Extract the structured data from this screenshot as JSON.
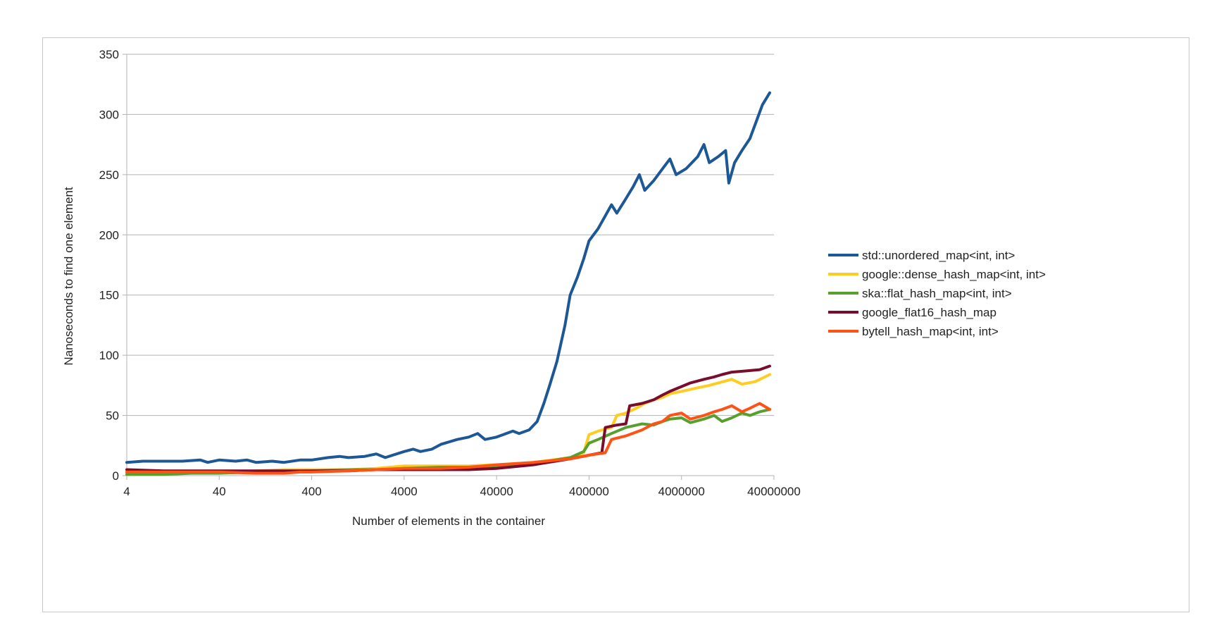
{
  "chart_data": {
    "type": "line",
    "x_scale": "log",
    "xlabel": "Number of elements in the container",
    "ylabel": "Nanoseconds to find one element",
    "xlim": [
      4,
      40000000
    ],
    "ylim": [
      0,
      350
    ],
    "x_ticks": [
      "4",
      "40",
      "400",
      "4000",
      "40000",
      "400000",
      "4000000",
      "40000000"
    ],
    "y_ticks": [
      "0",
      "50",
      "100",
      "150",
      "200",
      "250",
      "300",
      "350"
    ],
    "grid": "horizontal",
    "legend_position": "right",
    "series": [
      {
        "name": "std::unordered_map<int, int>",
        "color": "#1c5796",
        "points": [
          [
            4,
            11
          ],
          [
            6,
            12
          ],
          [
            10,
            12
          ],
          [
            16,
            12
          ],
          [
            25,
            13
          ],
          [
            30,
            11
          ],
          [
            40,
            13
          ],
          [
            60,
            12
          ],
          [
            80,
            13
          ],
          [
            100,
            11
          ],
          [
            150,
            12
          ],
          [
            200,
            11
          ],
          [
            300,
            13
          ],
          [
            400,
            13
          ],
          [
            600,
            15
          ],
          [
            800,
            16
          ],
          [
            1000,
            15
          ],
          [
            1500,
            16
          ],
          [
            2000,
            18
          ],
          [
            2500,
            15
          ],
          [
            3000,
            17
          ],
          [
            4000,
            20
          ],
          [
            5000,
            22
          ],
          [
            6000,
            20
          ],
          [
            8000,
            22
          ],
          [
            10000,
            26
          ],
          [
            15000,
            30
          ],
          [
            20000,
            32
          ],
          [
            25000,
            35
          ],
          [
            30000,
            30
          ],
          [
            40000,
            32
          ],
          [
            60000,
            37
          ],
          [
            70000,
            35
          ],
          [
            90000,
            38
          ],
          [
            110000,
            45
          ],
          [
            130000,
            60
          ],
          [
            150000,
            75
          ],
          [
            180000,
            95
          ],
          [
            220000,
            125
          ],
          [
            250000,
            150
          ],
          [
            300000,
            165
          ],
          [
            350000,
            180
          ],
          [
            400000,
            195
          ],
          [
            500000,
            205
          ],
          [
            700000,
            225
          ],
          [
            800000,
            218
          ],
          [
            1000000,
            230
          ],
          [
            1200000,
            240
          ],
          [
            1400000,
            250
          ],
          [
            1600000,
            237
          ],
          [
            2000000,
            245
          ],
          [
            2500000,
            255
          ],
          [
            3000000,
            263
          ],
          [
            3500000,
            250
          ],
          [
            4500000,
            255
          ],
          [
            6000000,
            265
          ],
          [
            7000000,
            275
          ],
          [
            8000000,
            260
          ],
          [
            10000000,
            265
          ],
          [
            12000000,
            270
          ],
          [
            13000000,
            243
          ],
          [
            15000000,
            260
          ],
          [
            18000000,
            270
          ],
          [
            22000000,
            280
          ],
          [
            26000000,
            295
          ],
          [
            30000000,
            308
          ],
          [
            36000000,
            318
          ]
        ]
      },
      {
        "name": "google::dense_hash_map<int, int>",
        "color": "#ffcc22",
        "points": [
          [
            4,
            3
          ],
          [
            10,
            3
          ],
          [
            20,
            3
          ],
          [
            40,
            3
          ],
          [
            100,
            4
          ],
          [
            200,
            5
          ],
          [
            400,
            5
          ],
          [
            1000,
            5
          ],
          [
            2000,
            6
          ],
          [
            4000,
            8
          ],
          [
            10000,
            8
          ],
          [
            20000,
            8
          ],
          [
            40000,
            9
          ],
          [
            100000,
            11
          ],
          [
            250000,
            15
          ],
          [
            350000,
            19
          ],
          [
            400000,
            34
          ],
          [
            500000,
            37
          ],
          [
            700000,
            40
          ],
          [
            800000,
            50
          ],
          [
            1000000,
            52
          ],
          [
            1300000,
            56
          ],
          [
            1600000,
            60
          ],
          [
            2000000,
            63
          ],
          [
            2500000,
            65
          ],
          [
            3000000,
            68
          ],
          [
            4000000,
            70
          ],
          [
            6000000,
            73
          ],
          [
            8000000,
            75
          ],
          [
            10000000,
            77
          ],
          [
            14000000,
            80
          ],
          [
            18000000,
            76
          ],
          [
            25000000,
            78
          ],
          [
            36000000,
            84
          ]
        ]
      },
      {
        "name": "ska::flat_hash_map<int, int>",
        "color": "#58a02e",
        "points": [
          [
            4,
            1
          ],
          [
            10,
            1
          ],
          [
            20,
            2
          ],
          [
            40,
            2
          ],
          [
            100,
            3
          ],
          [
            200,
            3
          ],
          [
            400,
            4
          ],
          [
            1000,
            5
          ],
          [
            2000,
            5
          ],
          [
            4000,
            6
          ],
          [
            10000,
            7
          ],
          [
            20000,
            7
          ],
          [
            40000,
            8
          ],
          [
            100000,
            10
          ],
          [
            250000,
            15
          ],
          [
            350000,
            20
          ],
          [
            400000,
            27
          ],
          [
            500000,
            30
          ],
          [
            700000,
            35
          ],
          [
            1000000,
            40
          ],
          [
            1500000,
            43
          ],
          [
            2000000,
            42
          ],
          [
            2500000,
            45
          ],
          [
            3000000,
            47
          ],
          [
            4000000,
            48
          ],
          [
            5000000,
            44
          ],
          [
            7000000,
            47
          ],
          [
            9000000,
            50
          ],
          [
            11000000,
            45
          ],
          [
            14000000,
            48
          ],
          [
            18000000,
            52
          ],
          [
            22000000,
            50
          ],
          [
            28000000,
            53
          ],
          [
            36000000,
            55
          ]
        ]
      },
      {
        "name": "google_flat16_hash_map",
        "color": "#7a0d2c",
        "points": [
          [
            4,
            5
          ],
          [
            10,
            4
          ],
          [
            20,
            4
          ],
          [
            40,
            4
          ],
          [
            100,
            4
          ],
          [
            200,
            4
          ],
          [
            400,
            4
          ],
          [
            1000,
            4
          ],
          [
            2000,
            5
          ],
          [
            4000,
            5
          ],
          [
            10000,
            5
          ],
          [
            20000,
            5
          ],
          [
            40000,
            6
          ],
          [
            100000,
            9
          ],
          [
            250000,
            14
          ],
          [
            400000,
            17
          ],
          [
            550000,
            19
          ],
          [
            600000,
            40
          ],
          [
            800000,
            42
          ],
          [
            1000000,
            43
          ],
          [
            1100000,
            58
          ],
          [
            1500000,
            60
          ],
          [
            2000000,
            63
          ],
          [
            2500000,
            67
          ],
          [
            3000000,
            70
          ],
          [
            4000000,
            74
          ],
          [
            5000000,
            77
          ],
          [
            7000000,
            80
          ],
          [
            9000000,
            82
          ],
          [
            11000000,
            84
          ],
          [
            14000000,
            86
          ],
          [
            20000000,
            87
          ],
          [
            28000000,
            88
          ],
          [
            36000000,
            91
          ]
        ]
      },
      {
        "name": "bytell_hash_map<int, int>",
        "color": "#ff5316",
        "points": [
          [
            4,
            3
          ],
          [
            10,
            3
          ],
          [
            20,
            3
          ],
          [
            40,
            3
          ],
          [
            100,
            2
          ],
          [
            200,
            2
          ],
          [
            300,
            3
          ],
          [
            400,
            3
          ],
          [
            1000,
            4
          ],
          [
            2000,
            5
          ],
          [
            4000,
            6
          ],
          [
            10000,
            6
          ],
          [
            20000,
            7
          ],
          [
            40000,
            9
          ],
          [
            100000,
            11
          ],
          [
            250000,
            14
          ],
          [
            400000,
            17
          ],
          [
            600000,
            19
          ],
          [
            700000,
            30
          ],
          [
            1000000,
            33
          ],
          [
            1500000,
            38
          ],
          [
            2000000,
            43
          ],
          [
            2500000,
            45
          ],
          [
            3000000,
            50
          ],
          [
            4000000,
            52
          ],
          [
            5000000,
            47
          ],
          [
            7000000,
            50
          ],
          [
            9000000,
            53
          ],
          [
            11000000,
            55
          ],
          [
            14000000,
            58
          ],
          [
            18000000,
            53
          ],
          [
            22000000,
            56
          ],
          [
            28000000,
            60
          ],
          [
            36000000,
            55
          ]
        ]
      }
    ]
  }
}
